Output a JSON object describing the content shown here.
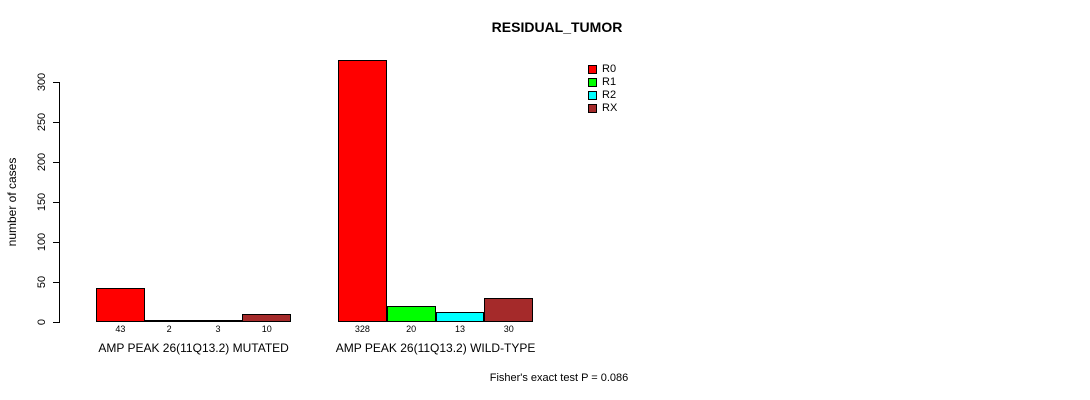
{
  "chart_data": {
    "type": "bar",
    "title": "RESIDUAL_TUMOR",
    "ylabel": "number of cases",
    "xlabel": "",
    "ylim": [
      0,
      300
    ],
    "yticks": [
      0,
      50,
      100,
      150,
      200,
      250,
      300
    ],
    "grid": false,
    "legend_position": "top-right",
    "series": [
      "R0",
      "R1",
      "R2",
      "RX"
    ],
    "colors": [
      "#FF0000",
      "#00FF00",
      "#00FFFF",
      "#A52A2A"
    ],
    "groups": [
      {
        "label": "AMP PEAK 26(11Q13.2) MUTATED",
        "values": [
          43,
          2,
          3,
          10
        ]
      },
      {
        "label": "AMP PEAK 26(11Q13.2) WILD-TYPE",
        "values": [
          328,
          20,
          13,
          30
        ]
      }
    ],
    "bar_value_labels_shown": true,
    "annotation": "Fisher's exact test P = 0.086"
  }
}
